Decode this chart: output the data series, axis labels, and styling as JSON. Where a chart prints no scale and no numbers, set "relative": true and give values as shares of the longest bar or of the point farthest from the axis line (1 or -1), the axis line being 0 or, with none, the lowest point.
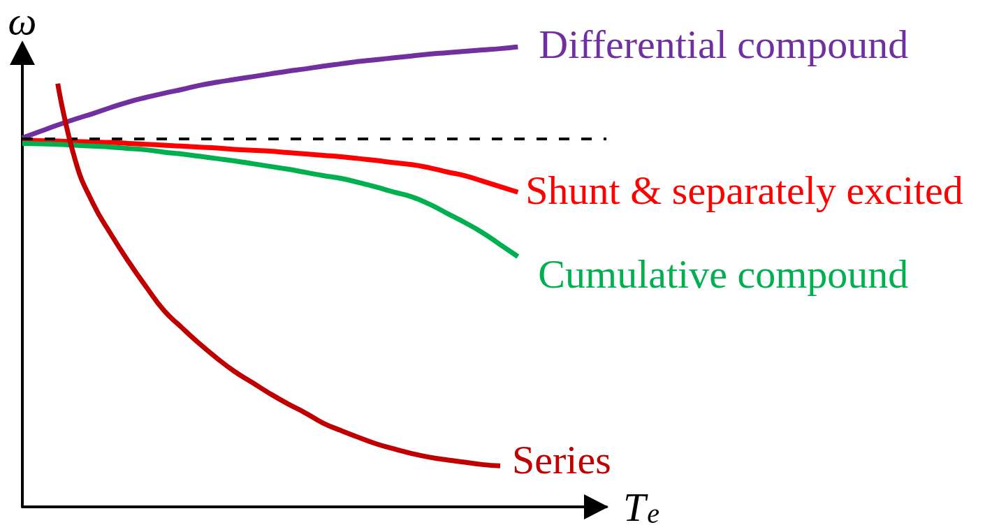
{
  "chart_data": {
    "type": "line",
    "relative": true,
    "xlabel": "T$_{e}$",
    "ylabel": "ω",
    "categories": [
      null,
      null,
      null,
      null,
      null,
      null,
      null,
      null,
      null,
      null,
      null,
      null,
      null,
      null,
      null,
      null,
      null,
      null,
      null,
      null,
      null,
      null,
      null,
      null,
      null,
      null,
      null,
      null,
      null,
      null,
      null,
      null,
      null,
      null
    ],
    "series": [
      {
        "name": "Differential compound",
        "color": "#7030a0",
        "values": [
          0.802,
          0.816,
          0.83,
          0.843,
          0.855,
          0.868,
          0.88,
          0.89,
          0.899,
          0.907,
          0.916,
          0.923,
          0.929,
          0.935,
          0.941,
          0.947,
          0.952,
          0.958,
          0.963,
          0.968,
          0.972,
          0.976,
          0.98,
          0.984,
          0.987,
          0.99,
          0.993,
          0.996,
          1.0,
          null,
          null,
          null,
          null,
          null
        ]
      },
      {
        "name": "Shunt & separately excited",
        "color": "#ff0000",
        "values": [
          0.797,
          0.796,
          0.795,
          0.794,
          0.793,
          0.792,
          0.79,
          0.788,
          0.786,
          0.784,
          0.782,
          0.78,
          0.777,
          0.775,
          0.773,
          0.77,
          0.767,
          0.764,
          0.761,
          0.757,
          0.753,
          0.748,
          0.744,
          0.737,
          0.728,
          0.72,
          0.708,
          0.696,
          0.684,
          null,
          null,
          null,
          null,
          null
        ]
      },
      {
        "name": "Cumulative compound",
        "color": "#00b050",
        "values": [
          0.79,
          0.789,
          0.788,
          0.786,
          0.784,
          0.782,
          0.779,
          0.776,
          0.771,
          0.767,
          0.762,
          0.757,
          0.752,
          0.746,
          0.74,
          0.734,
          0.727,
          0.72,
          0.714,
          0.705,
          0.695,
          0.684,
          0.674,
          0.658,
          0.638,
          0.618,
          0.596,
          0.57,
          0.544,
          null,
          null,
          null,
          null,
          null
        ]
      },
      {
        "name": "Series",
        "color": "#c00000",
        "values": [
          null,
          null,
          0.92,
          0.752,
          0.659,
          0.593,
          0.533,
          0.478,
          0.427,
          0.39,
          0.355,
          0.323,
          0.294,
          0.27,
          0.246,
          0.224,
          0.204,
          0.182,
          0.166,
          0.151,
          0.137,
          0.126,
          0.116,
          0.108,
          0.102,
          0.097,
          0.092,
          0.089,
          null,
          null,
          null,
          null,
          null,
          null
        ]
      }
    ],
    "ref_lines": [
      {
        "axis": "y",
        "value": 0.796,
        "color": "#000000",
        "line_style": "dashed"
      }
    ]
  }
}
